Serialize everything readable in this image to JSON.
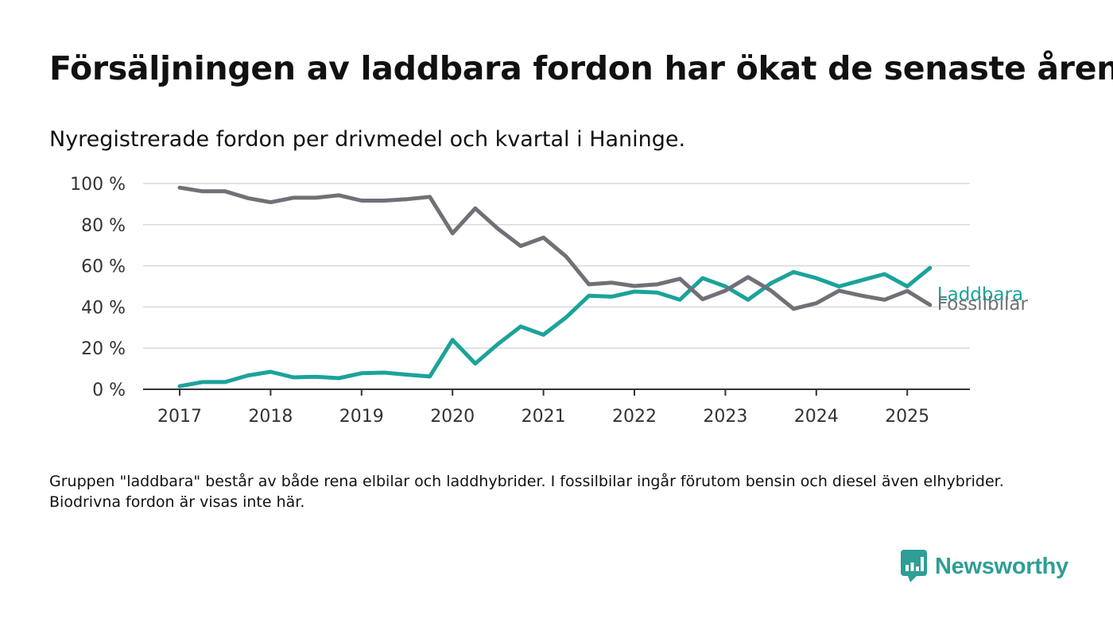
{
  "title": "Försäljningen av laddbara fordon har ökat de senaste åren",
  "subtitle": "Nyregistrerade fordon per drivmedel och kvartal i Haninge.",
  "note": "Gruppen \"laddbara\" består av både rena elbilar och laddhybrider. I fossilbilar ingår förutom bensin och diesel även elhybrider. Biodrivna fordon är visas inte här.",
  "brand": {
    "name": "Newsworthy",
    "icon": "newsworthy-logo-icon",
    "color": "#2e9e96"
  },
  "chart_data": {
    "type": "line",
    "ylim": [
      0,
      100
    ],
    "yticks": [
      0,
      20,
      40,
      60,
      80,
      100
    ],
    "ytick_labels": [
      "0 %",
      "20 %",
      "40 %",
      "60 %",
      "80 %",
      "100 %"
    ],
    "xlim": [
      2017,
      2025.7
    ],
    "xticks": [
      2017,
      2018,
      2019,
      2020,
      2021,
      2022,
      2023,
      2024,
      2025
    ],
    "xtick_labels": [
      "2017",
      "2018",
      "2019",
      "2020",
      "2021",
      "2022",
      "2023",
      "2024",
      "2025"
    ],
    "grid": true,
    "legend": "line-end labels",
    "x": [
      2017,
      2017.25,
      2017.5,
      2017.75,
      2018,
      2018.25,
      2018.5,
      2018.75,
      2019,
      2019.25,
      2019.5,
      2019.75,
      2020,
      2020.25,
      2020.5,
      2020.75,
      2021,
      2021.25,
      2021.5,
      2021.75,
      2022,
      2022.25,
      2022.5,
      2022.75,
      2023,
      2023.25,
      2023.5,
      2023.75,
      2024,
      2024.25,
      2024.5,
      2024.75,
      2025,
      2025.25
    ],
    "series": [
      {
        "name": "Laddbara",
        "color": "#1ba39a",
        "values": [
          1.5,
          3.5,
          3.5,
          6.7,
          8.5,
          5.8,
          6.1,
          5.4,
          7.8,
          8.1,
          7.1,
          6.2,
          24,
          12.5,
          22,
          30.5,
          26.5,
          35,
          45.5,
          45,
          47.5,
          47,
          43.5,
          54,
          50,
          43.5,
          51.5,
          57,
          54,
          50,
          53,
          56,
          50,
          59
        ]
      },
      {
        "name": "Fossilbilar",
        "color": "#707077",
        "values": [
          98,
          96.2,
          96.2,
          92.9,
          90.9,
          93.1,
          93.1,
          94.3,
          91.7,
          91.7,
          92.4,
          93.5,
          75.8,
          87.9,
          78,
          69.6,
          73.7,
          64.5,
          51,
          51.8,
          50.2,
          51,
          53.7,
          43.8,
          47.9,
          54.5,
          48,
          39.1,
          41.8,
          47.9,
          45.5,
          43.5,
          47.8,
          41
        ]
      }
    ]
  }
}
